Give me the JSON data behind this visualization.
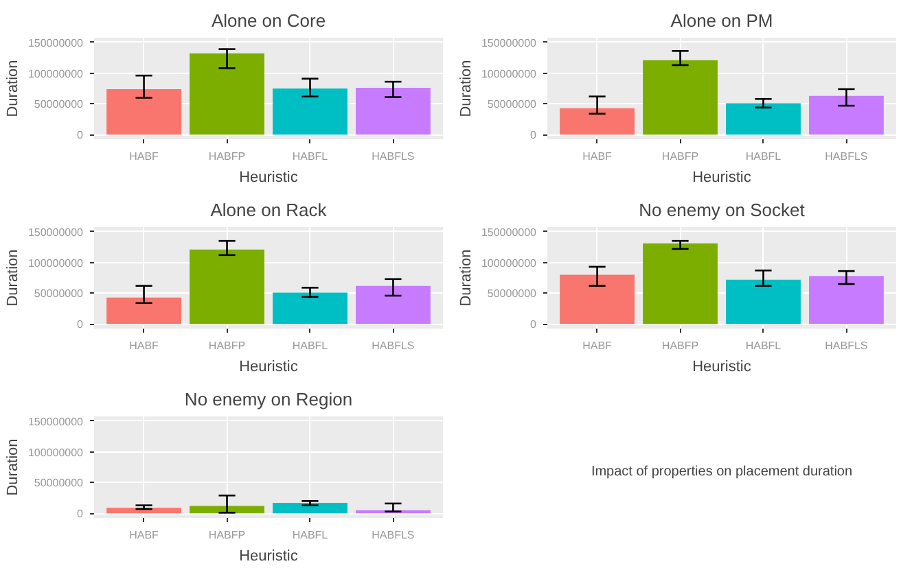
{
  "chart_data": [
    {
      "type": "bar",
      "title": "Alone on Core",
      "xlabel": "Heuristic",
      "ylabel": "Duration",
      "categories": [
        "HABF",
        "HABFP",
        "HABFL",
        "HABFLS"
      ],
      "values": [
        74000000,
        132000000,
        75000000,
        76000000
      ],
      "errors": [
        [
          60000000,
          96000000
        ],
        [
          108000000,
          139000000
        ],
        [
          62000000,
          91000000
        ],
        [
          61000000,
          86000000
        ]
      ],
      "colors": [
        "#f8766d",
        "#7cae00",
        "#00bfc4",
        "#c77cff"
      ],
      "ylim": [
        -7500000,
        157500000
      ],
      "yticks": [
        0,
        50000000,
        100000000,
        150000000
      ],
      "grid": true
    },
    {
      "type": "bar",
      "title": "Alone on PM",
      "xlabel": "Heuristic",
      "ylabel": "Duration",
      "categories": [
        "HABF",
        "HABFP",
        "HABFL",
        "HABFLS"
      ],
      "values": [
        43000000,
        121000000,
        51000000,
        63000000
      ],
      "errors": [
        [
          34000000,
          62000000
        ],
        [
          113000000,
          136000000
        ],
        [
          44000000,
          58000000
        ],
        [
          47000000,
          74000000
        ]
      ],
      "colors": [
        "#f8766d",
        "#7cae00",
        "#00bfc4",
        "#c77cff"
      ],
      "ylim": [
        -7500000,
        157500000
      ],
      "yticks": [
        0,
        50000000,
        100000000,
        150000000
      ],
      "grid": true
    },
    {
      "type": "bar",
      "title": "Alone on Rack",
      "xlabel": "Heuristic",
      "ylabel": "Duration",
      "categories": [
        "HABF",
        "HABFP",
        "HABFL",
        "HABFLS"
      ],
      "values": [
        43000000,
        121000000,
        51000000,
        62000000
      ],
      "errors": [
        [
          34000000,
          62000000
        ],
        [
          112000000,
          135000000
        ],
        [
          44000000,
          59000000
        ],
        [
          46000000,
          73000000
        ]
      ],
      "colors": [
        "#f8766d",
        "#7cae00",
        "#00bfc4",
        "#c77cff"
      ],
      "ylim": [
        -7500000,
        157500000
      ],
      "yticks": [
        0,
        50000000,
        100000000,
        150000000
      ],
      "grid": true
    },
    {
      "type": "bar",
      "title": "No enemy on Socket",
      "xlabel": "Heuristic",
      "ylabel": "Duration",
      "categories": [
        "HABF",
        "HABFP",
        "HABFL",
        "HABFLS"
      ],
      "values": [
        80000000,
        131000000,
        72000000,
        78000000
      ],
      "errors": [
        [
          62000000,
          93000000
        ],
        [
          122000000,
          135000000
        ],
        [
          62000000,
          87000000
        ],
        [
          65000000,
          86000000
        ]
      ],
      "colors": [
        "#f8766d",
        "#7cae00",
        "#00bfc4",
        "#c77cff"
      ],
      "ylim": [
        -7500000,
        157500000
      ],
      "yticks": [
        0,
        50000000,
        100000000,
        150000000
      ],
      "grid": true
    },
    {
      "type": "bar",
      "title": "No enemy on Region",
      "xlabel": "Heuristic",
      "ylabel": "Duration",
      "categories": [
        "HABF",
        "HABFP",
        "HABFL",
        "HABFLS"
      ],
      "values": [
        9000000,
        12000000,
        17000000,
        5000000
      ],
      "errors": [
        [
          7000000,
          13000000
        ],
        [
          1000000,
          29000000
        ],
        [
          13000000,
          20000000
        ],
        [
          3000000,
          16000000
        ]
      ],
      "colors": [
        "#f8766d",
        "#7cae00",
        "#00bfc4",
        "#c77cff"
      ],
      "ylim": [
        -7500000,
        157500000
      ],
      "yticks": [
        0,
        50000000,
        100000000,
        150000000
      ],
      "grid": true
    },
    {
      "type": "other",
      "annotations": [
        "Impact of properties on placement duration"
      ]
    }
  ]
}
